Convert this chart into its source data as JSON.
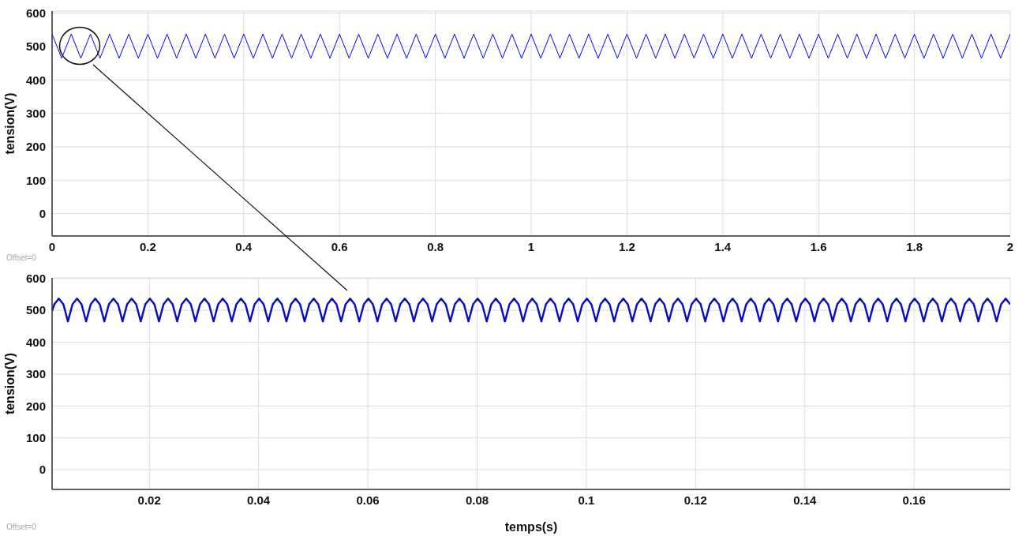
{
  "chart_data": [
    {
      "type": "line",
      "ylabel": "tension(V)",
      "annotations": [
        "Offset=0"
      ],
      "xlim": [
        0,
        2
      ],
      "xticks": [
        0,
        0.2,
        0.4,
        0.6,
        0.8,
        1,
        1.2,
        1.4,
        1.6,
        1.8,
        2
      ],
      "ylim": [
        -67,
        606
      ],
      "yticks": [
        0,
        100,
        200,
        300,
        400,
        500,
        600
      ],
      "grid": true,
      "x": [
        0,
        0.02,
        0.04,
        0.06,
        0.08,
        0.1,
        0.12,
        0.14,
        0.16,
        0.18,
        0.2,
        0.22,
        0.24,
        0.26,
        0.28,
        0.3,
        0.32,
        0.34,
        0.36,
        0.38,
        0.4,
        0.42,
        0.44,
        0.46,
        0.48,
        0.5,
        0.52,
        0.54,
        0.56,
        0.58,
        0.6,
        0.62,
        0.64,
        0.66,
        0.68,
        0.7,
        0.72,
        0.74,
        0.76,
        0.78,
        0.8,
        0.82,
        0.84,
        0.86,
        0.88,
        0.9,
        0.92,
        0.94,
        0.96,
        0.98,
        1,
        1.02,
        1.04,
        1.06,
        1.08,
        1.1,
        1.12,
        1.14,
        1.16,
        1.18,
        1.2,
        1.22,
        1.24,
        1.26,
        1.28,
        1.3,
        1.32,
        1.34,
        1.36,
        1.38,
        1.4,
        1.42,
        1.44,
        1.46,
        1.48,
        1.5,
        1.52,
        1.54,
        1.56,
        1.58,
        1.6,
        1.62,
        1.64,
        1.66,
        1.68,
        1.7,
        1.72,
        1.74,
        1.76,
        1.78,
        1.8,
        1.82,
        1.84,
        1.86,
        1.88,
        1.9,
        1.92,
        1.94,
        1.96,
        1.98,
        2
      ],
      "series": [
        {
          "color": "#0000ff",
          "values": [
            537,
            465,
            537,
            465,
            537,
            465,
            537,
            465,
            537,
            465,
            537,
            465,
            537,
            465,
            537,
            465,
            537,
            465,
            537,
            465,
            537,
            465,
            537,
            465,
            537,
            465,
            537,
            465,
            537,
            465,
            537,
            465,
            537,
            465,
            537,
            465,
            537,
            465,
            537,
            465,
            537,
            465,
            537,
            465,
            537,
            465,
            537,
            465,
            537,
            465,
            537,
            465,
            537,
            465,
            537,
            465,
            537,
            465,
            537,
            465,
            537,
            465,
            537,
            465,
            537,
            465,
            537,
            465,
            537,
            465,
            537,
            465,
            537,
            465,
            537,
            465,
            537,
            465,
            537,
            465,
            537,
            465,
            537,
            465,
            537,
            465,
            537,
            465,
            537,
            465,
            537,
            465,
            537,
            465,
            537,
            465,
            537,
            465,
            537,
            465,
            537
          ]
        }
      ]
    },
    {
      "type": "line",
      "xlabel": "temps(s)",
      "ylabel": "tension(V)",
      "annotations": [
        "Offset=0"
      ],
      "xlim": [
        0.0022,
        0.1776
      ],
      "xticks": [
        0.02,
        0.04,
        0.06,
        0.08,
        0.1,
        0.12,
        0.14,
        0.16
      ],
      "ylim": [
        -62,
        602
      ],
      "yticks": [
        0,
        100,
        200,
        300,
        400,
        500,
        600
      ],
      "grid": true,
      "x": [
        0.0022,
        0.0026,
        0.00343,
        0.00427,
        0.0051,
        0.00593,
        0.00677,
        0.0076,
        0.00843,
        0.00927,
        0.0101,
        0.01093,
        0.01177,
        0.0126,
        0.01343,
        0.01427,
        0.0151,
        0.01593,
        0.01677,
        0.0176,
        0.01843,
        0.01927,
        0.0201,
        0.02093,
        0.02177,
        0.0226,
        0.02343,
        0.02427,
        0.0251,
        0.02593,
        0.02677,
        0.0276,
        0.02843,
        0.02927,
        0.0301,
        0.03093,
        0.03177,
        0.0326,
        0.03343,
        0.03427,
        0.0351,
        0.03593,
        0.03677,
        0.0376,
        0.03843,
        0.03927,
        0.0401,
        0.04093,
        0.04177,
        0.0426,
        0.04343,
        0.04427,
        0.0451,
        0.04593,
        0.04677,
        0.0476,
        0.04843,
        0.04927,
        0.0501,
        0.05093,
        0.05177,
        0.0526,
        0.05343,
        0.05427,
        0.0551,
        0.05593,
        0.05677,
        0.0576,
        0.05843,
        0.05927,
        0.0601,
        0.06093,
        0.06177,
        0.0626,
        0.06343,
        0.06427,
        0.0651,
        0.06593,
        0.06677,
        0.0676,
        0.06843,
        0.06927,
        0.0701,
        0.07093,
        0.07177,
        0.0726,
        0.07343,
        0.07427,
        0.0751,
        0.07593,
        0.07677,
        0.0776,
        0.07843,
        0.07927,
        0.0801,
        0.08093,
        0.08177,
        0.0826,
        0.08343,
        0.08427,
        0.0851,
        0.08593,
        0.08677,
        0.0876,
        0.08843,
        0.08927,
        0.0901,
        0.09093,
        0.09177,
        0.0926,
        0.09343,
        0.09427,
        0.0951,
        0.09593,
        0.09677,
        0.0976,
        0.09843,
        0.09927,
        0.1001,
        0.10093,
        0.10177,
        0.1026,
        0.10343,
        0.10427,
        0.1051,
        0.10593,
        0.10677,
        0.1076,
        0.10843,
        0.10927,
        0.1101,
        0.11093,
        0.11177,
        0.1126,
        0.11343,
        0.11427,
        0.1151,
        0.11593,
        0.11677,
        0.1176,
        0.11843,
        0.11927,
        0.1201,
        0.12093,
        0.12177,
        0.1226,
        0.12343,
        0.12427,
        0.1251,
        0.12593,
        0.12677,
        0.1276,
        0.12843,
        0.12927,
        0.1301,
        0.13093,
        0.13177,
        0.1326,
        0.13343,
        0.13427,
        0.1351,
        0.13593,
        0.13677,
        0.1376,
        0.13843,
        0.13927,
        0.1401,
        0.14093,
        0.14177,
        0.1426,
        0.14343,
        0.14427,
        0.1451,
        0.14593,
        0.14677,
        0.1476,
        0.14843,
        0.14927,
        0.1501,
        0.15093,
        0.15177,
        0.1526,
        0.15343,
        0.15427,
        0.1551,
        0.15593,
        0.15677,
        0.1576,
        0.15843,
        0.15927,
        0.1601,
        0.16093,
        0.16177,
        0.1626,
        0.16343,
        0.16427,
        0.1651,
        0.16593,
        0.16677,
        0.1676,
        0.16843,
        0.16927,
        0.1701,
        0.17093,
        0.17177,
        0.1726,
        0.17343,
        0.17427,
        0.1751,
        0.17593,
        0.17677,
        0.1776
      ],
      "series": [
        {
          "color": "#0a10c0",
          "values": [
            498,
            519,
            537,
            519,
            465,
            519,
            537,
            519,
            465,
            519,
            537,
            519,
            465,
            519,
            537,
            519,
            465,
            519,
            537,
            519,
            465,
            519,
            537,
            519,
            465,
            519,
            537,
            519,
            465,
            519,
            537,
            519,
            465,
            519,
            537,
            519,
            465,
            519,
            537,
            519,
            465,
            519,
            537,
            519,
            465,
            519,
            537,
            519,
            465,
            519,
            537,
            519,
            465,
            519,
            537,
            519,
            465,
            519,
            537,
            519,
            465,
            519,
            537,
            519,
            465,
            519,
            537,
            519,
            465,
            519,
            537,
            519,
            465,
            519,
            537,
            519,
            465,
            519,
            537,
            519,
            465,
            519,
            537,
            519,
            465,
            519,
            537,
            519,
            465,
            519,
            537,
            519,
            465,
            519,
            537,
            519,
            465,
            519,
            537,
            519,
            465,
            519,
            537,
            519,
            465,
            519,
            537,
            519,
            465,
            519,
            537,
            519,
            465,
            519,
            537,
            519,
            465,
            519,
            537,
            519,
            465,
            519,
            537,
            519,
            465,
            519,
            537,
            519,
            465,
            519,
            537,
            519,
            465,
            519,
            537,
            519,
            465,
            519,
            537,
            519,
            465,
            519,
            537,
            519,
            465,
            519,
            537,
            519,
            465,
            519,
            537,
            519,
            465,
            519,
            537,
            519,
            465,
            519,
            537,
            519,
            465,
            519,
            537,
            519,
            465,
            519,
            537,
            519,
            465,
            519,
            537,
            519,
            465,
            519,
            537,
            519,
            465,
            519,
            537,
            519,
            465,
            519,
            537,
            519,
            465,
            519,
            537,
            519,
            465,
            519,
            537,
            519,
            465,
            519,
            537,
            519,
            465,
            519,
            537,
            519,
            465,
            519,
            537,
            519,
            465,
            519,
            537,
            519,
            465,
            519,
            537,
            519
          ]
        }
      ]
    }
  ]
}
